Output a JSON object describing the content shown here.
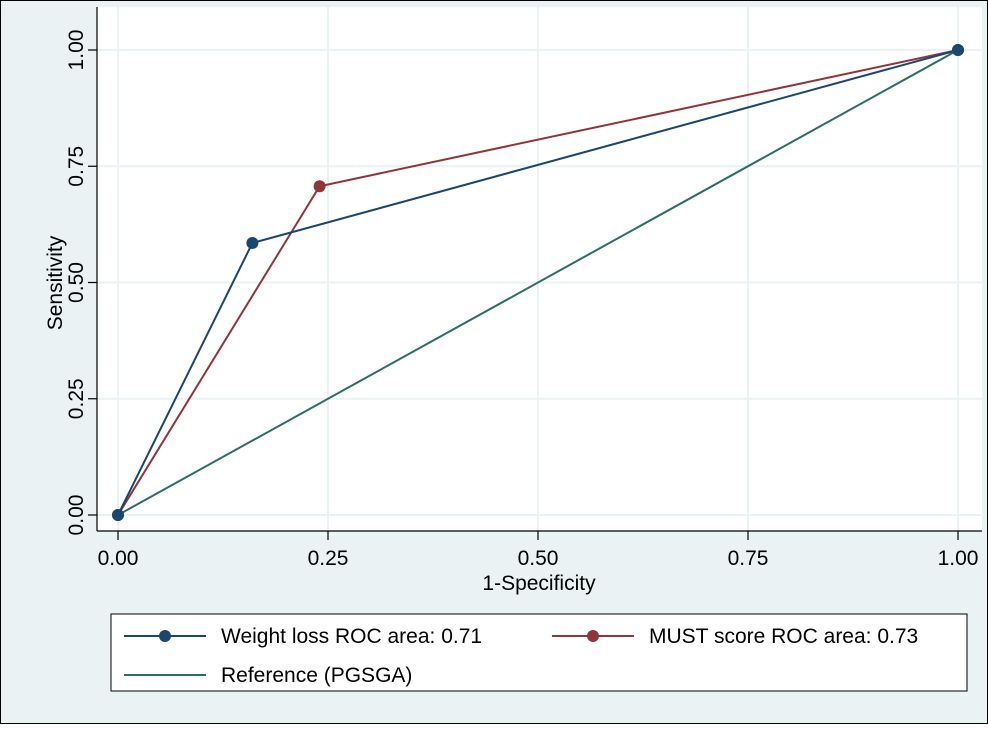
{
  "chart_data": {
    "type": "line",
    "xlabel": "1-Specificity",
    "ylabel": "Sensitivity",
    "xlim": [
      0,
      1
    ],
    "ylim": [
      0,
      1
    ],
    "x_ticks": [
      "0.00",
      "0.25",
      "0.50",
      "0.75",
      "1.00"
    ],
    "y_ticks": [
      "0.00",
      "0.25",
      "0.50",
      "0.75",
      "1.00"
    ],
    "grid": true,
    "legend_position": "bottom",
    "series": [
      {
        "name": "Weight loss ROC area: 0.71",
        "color": "#1a476f",
        "markers": true,
        "points": [
          [
            0,
            0
          ],
          [
            0.16,
            0.585
          ],
          [
            1,
            1
          ]
        ]
      },
      {
        "name": "MUST score ROC area: 0.73",
        "color": "#90353b",
        "markers": true,
        "points": [
          [
            0,
            0
          ],
          [
            0.24,
            0.707
          ],
          [
            1,
            1
          ]
        ]
      },
      {
        "name": "Reference (PGSGA)",
        "color": "#2d6d66",
        "markers": false,
        "points": [
          [
            0,
            0
          ],
          [
            1,
            1
          ]
        ]
      }
    ]
  },
  "colors": {
    "background": "#eaf2f3",
    "plot_region": "#ffffff",
    "gridline": "#eaf2f3"
  }
}
